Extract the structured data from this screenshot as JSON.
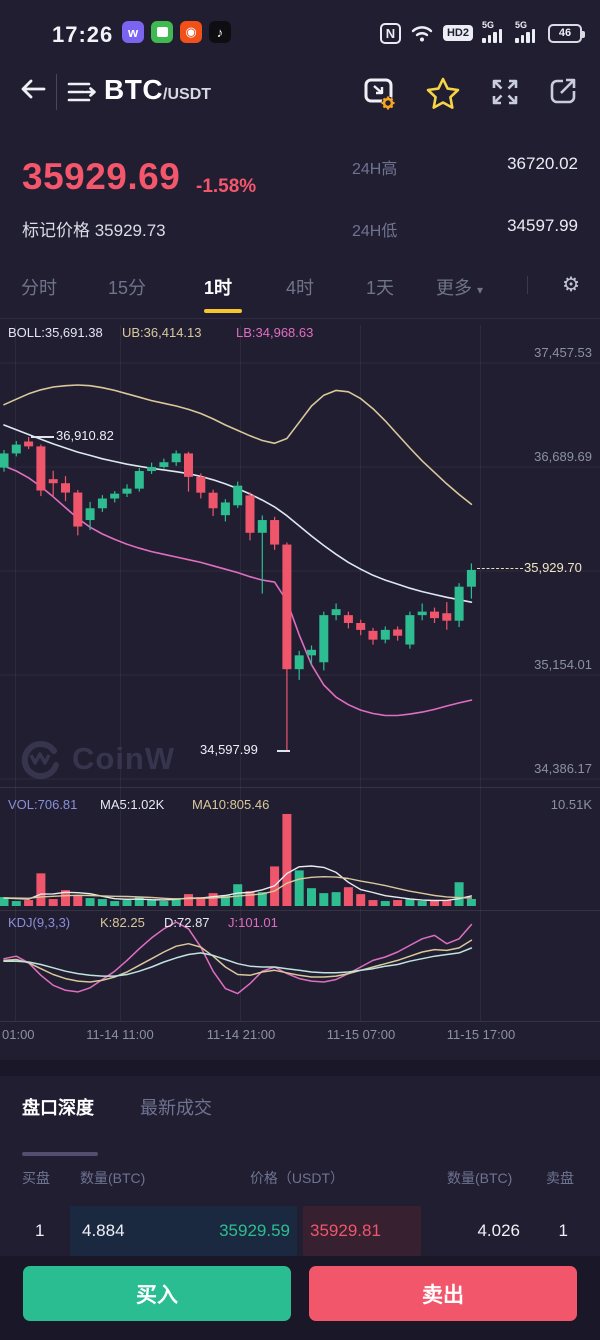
{
  "status_bar": {
    "time": "17:26",
    "nfc": "N",
    "hd": "HD2",
    "net1": "5G",
    "net2": "5G",
    "battery": "46"
  },
  "header": {
    "base": "BTC",
    "quote": "/USDT"
  },
  "ticker": {
    "last_price": "35929.69",
    "change_pct": "-1.58%",
    "mark_price": "标记价格 35929.73",
    "high_label": "24H高",
    "high_value": "36720.02",
    "low_label": "24H低",
    "low_value": "34597.99"
  },
  "timeframe_tabs": {
    "items": [
      "分时",
      "15分",
      "1时",
      "4时",
      "1天"
    ],
    "active": "1时",
    "more_label": "更多",
    "caret": "▾",
    "gear": "⚙"
  },
  "watermark": "CoinW",
  "chart_data": {
    "type": "candlestick",
    "title": "BTC/USDT 1时 K线",
    "ylim": [
      34386.17,
      37457.53
    ],
    "y_gridline_values": [
      37457.53,
      36689.69,
      35921.85,
      35154.01,
      34386.17
    ],
    "y_axis_labels": [
      "37,457.53",
      "36,689.69",
      "35,154.01",
      "34,386.17"
    ],
    "current_price_label": "35,929.70",
    "annotation_high": "36,910.82",
    "annotation_low": "34,597.99",
    "boll_label": "BOLL:35,691.38",
    "ub_label": "UB:36,414.13",
    "lb_label": "LB:34,968.63",
    "x_axis_labels": [
      "01:00",
      "11-14 11:00",
      "11-14 21:00",
      "11-15 07:00",
      "11-15 17:00"
    ],
    "candles": [
      [
        36685,
        36815,
        36655,
        36790
      ],
      [
        36790,
        36882,
        36768,
        36855
      ],
      [
        36878,
        36910.82,
        36822,
        36842
      ],
      [
        36842,
        36856,
        36475,
        36516
      ],
      [
        36600,
        36662,
        36468,
        36570
      ],
      [
        36570,
        36622,
        36438,
        36501
      ],
      [
        36501,
        36520,
        36185,
        36250
      ],
      [
        36298,
        36432,
        36224,
        36385
      ],
      [
        36385,
        36482,
        36358,
        36457
      ],
      [
        36457,
        36512,
        36428,
        36493
      ],
      [
        36493,
        36562,
        36468,
        36530
      ],
      [
        36530,
        36682,
        36508,
        36660
      ],
      [
        36660,
        36722,
        36638,
        36690
      ],
      [
        36690,
        36752,
        36678,
        36725
      ],
      [
        36725,
        36812,
        36698,
        36790
      ],
      [
        36790,
        36802,
        36508,
        36617
      ],
      [
        36617,
        36642,
        36458,
        36500
      ],
      [
        36500,
        36522,
        36328,
        36385
      ],
      [
        36334,
        36452,
        36288,
        36428
      ],
      [
        36407,
        36582,
        36388,
        36552
      ],
      [
        36480,
        36502,
        36148,
        36204
      ],
      [
        36204,
        36332,
        35755,
        36298
      ],
      [
        36298,
        36322,
        36078,
        36117
      ],
      [
        36117,
        36132,
        34597.99,
        35197
      ],
      [
        35197,
        35332,
        35118,
        35299
      ],
      [
        35299,
        35372,
        35228,
        35340
      ],
      [
        35248,
        35622,
        35188,
        35596
      ],
      [
        35596,
        35682,
        35558,
        35640
      ],
      [
        35596,
        35622,
        35498,
        35538
      ],
      [
        35538,
        35562,
        35448,
        35487
      ],
      [
        35480,
        35502,
        35378,
        35415
      ],
      [
        35415,
        35512,
        35388,
        35487
      ],
      [
        35490,
        35512,
        35408,
        35444
      ],
      [
        35379,
        35622,
        35348,
        35596
      ],
      [
        35596,
        35682,
        35558,
        35622
      ],
      [
        35622,
        35652,
        35538,
        35574
      ],
      [
        35610,
        35692,
        35488,
        35555
      ],
      [
        35555,
        35832,
        35508,
        35806
      ],
      [
        35806,
        35978,
        35718,
        35929.7
      ]
    ],
    "boll_upper": [
      37150,
      37190,
      37230,
      37260,
      37280,
      37290,
      37295,
      37290,
      37275,
      37255,
      37230,
      37205,
      37180,
      37160,
      37140,
      37115,
      37085,
      37045,
      37000,
      36960,
      36920,
      36885,
      36865,
      36900,
      37020,
      37140,
      37220,
      37255,
      37245,
      37195,
      37120,
      37030,
      36930,
      36830,
      36735,
      36650,
      36565,
      36487,
      36414.13
    ],
    "boll_mid": [
      37000,
      36965,
      36930,
      36895,
      36860,
      36830,
      36800,
      36775,
      36750,
      36730,
      36710,
      36695,
      36680,
      36668,
      36655,
      36640,
      36620,
      36595,
      36565,
      36530,
      36490,
      36445,
      36395,
      36330,
      36255,
      36180,
      36110,
      36045,
      35985,
      35935,
      35890,
      35855,
      35825,
      35795,
      35770,
      35748,
      35728,
      35710,
      35691.38
    ],
    "boll_lower": [
      36697,
      36660,
      36610,
      36545,
      36470,
      36390,
      36310,
      36245,
      36195,
      36155,
      36120,
      36090,
      36065,
      36045,
      36025,
      36005,
      35985,
      35960,
      35935,
      35910,
      35880,
      35855,
      35840,
      35700,
      35450,
      35230,
      35080,
      34990,
      34935,
      34895,
      34870,
      34855,
      34855,
      34865,
      34880,
      34900,
      34925,
      34948,
      34968.63
    ],
    "volume": {
      "label": "VOL:706.81",
      "ma5_label": "MA5:1.02K",
      "ma10_label": "MA10:805.46",
      "scale_label": "10.51K",
      "scale_max": 10.51,
      "values": [
        0.9,
        0.5,
        0.6,
        3.3,
        0.7,
        1.6,
        1.1,
        0.8,
        0.7,
        0.5,
        0.6,
        0.9,
        0.6,
        0.5,
        0.8,
        1.2,
        0.9,
        1.3,
        1.1,
        2.2,
        1.5,
        1.4,
        4.0,
        9.3,
        3.6,
        1.8,
        1.3,
        1.4,
        1.9,
        1.2,
        0.6,
        0.5,
        0.6,
        0.7,
        0.5,
        0.5,
        0.6,
        2.4,
        0.71
      ],
      "ma5": [
        0.8,
        0.75,
        0.7,
        1.2,
        1.22,
        1.38,
        1.34,
        1.24,
        0.98,
        0.74,
        0.68,
        0.7,
        0.64,
        0.62,
        0.68,
        0.8,
        0.8,
        0.94,
        1.06,
        1.3,
        1.36,
        1.64,
        2.04,
        3.28,
        3.96,
        4.04,
        3.9,
        3.4,
        2.4,
        1.66,
        1.36,
        1.04,
        0.88,
        0.72,
        0.6,
        0.56,
        0.58,
        0.74,
        1.02
      ],
      "ma10": [
        0.82,
        0.8,
        0.78,
        0.92,
        0.98,
        1.04,
        1.08,
        1.06,
        1.02,
        0.98,
        0.96,
        0.92,
        0.86,
        0.78,
        0.72,
        0.76,
        0.78,
        0.82,
        0.88,
        1.0,
        1.1,
        1.22,
        1.52,
        2.3,
        2.72,
        2.9,
        2.96,
        2.92,
        2.78,
        2.52,
        2.3,
        2.06,
        1.78,
        1.5,
        1.28,
        1.06,
        0.92,
        0.84,
        0.805
      ]
    },
    "kdj": {
      "label": "KDJ(9,3,3)",
      "k_label": "K:82.25",
      "d_label": "D:72.87",
      "j_label": "J:101.01",
      "k": [
        58,
        59,
        55,
        48,
        41,
        36,
        33,
        32,
        34,
        38,
        44,
        52,
        60,
        68,
        75,
        78,
        74,
        63,
        50,
        41,
        40,
        44,
        46,
        43,
        40,
        38,
        38,
        39,
        42,
        46,
        50,
        54,
        58,
        63,
        68,
        71,
        70,
        73,
        82.25
      ],
      "d": [
        57,
        57,
        56,
        53,
        49,
        45,
        42,
        40,
        39,
        39,
        41,
        45,
        50,
        56,
        61,
        65,
        67,
        64,
        59,
        54,
        51,
        50,
        50,
        48,
        46,
        44,
        43,
        43,
        44,
        46,
        48,
        51,
        53,
        57,
        60,
        63,
        65,
        67,
        72.87
      ],
      "j": [
        60,
        63,
        55,
        40,
        28,
        22,
        20,
        25,
        35,
        45,
        58,
        72,
        85,
        96,
        104,
        96,
        74,
        45,
        24,
        18,
        30,
        45,
        50,
        42,
        36,
        33,
        32,
        35,
        42,
        50,
        58,
        62,
        68,
        76,
        84,
        88,
        78,
        84,
        101.01
      ]
    },
    "colors": {
      "up": "#2ebd90",
      "down": "#f0566b",
      "boll_mid": "#dce8ee",
      "boll_upper": "#d9c89a",
      "boll_lower": "#e06ec0",
      "vol_ma5": "#e8ecf2",
      "vol_ma10": "#d9c89a",
      "kdj_k": "#d9c89a",
      "kdj_d": "#bfe3de",
      "kdj_j": "#e06ec0",
      "grid": "rgba(255,255,255,0.055)",
      "separator": "rgba(255,255,255,0.09)"
    }
  },
  "depth": {
    "tab_depth": "盘口深度",
    "tab_trades": "最新成交",
    "col_buy": "买盘",
    "col_amount_left": "数量(BTC)",
    "col_price": "价格（USDT）",
    "col_amount_right": "数量(BTC)",
    "col_sell": "卖盘",
    "bid": {
      "orders": "1",
      "amount": "4.884",
      "price": "35929.59"
    },
    "ask": {
      "price": "35929.81",
      "amount": "4.026",
      "orders": "1"
    }
  },
  "trade": {
    "buy_label": "买入",
    "sell_label": "卖出"
  },
  "theme": {
    "price_down_red": "#f4566c",
    "buy_green": "#2abd91",
    "sell_red": "#f2566a",
    "tab_accent": "#f7c52c",
    "bg": "#211e32"
  }
}
